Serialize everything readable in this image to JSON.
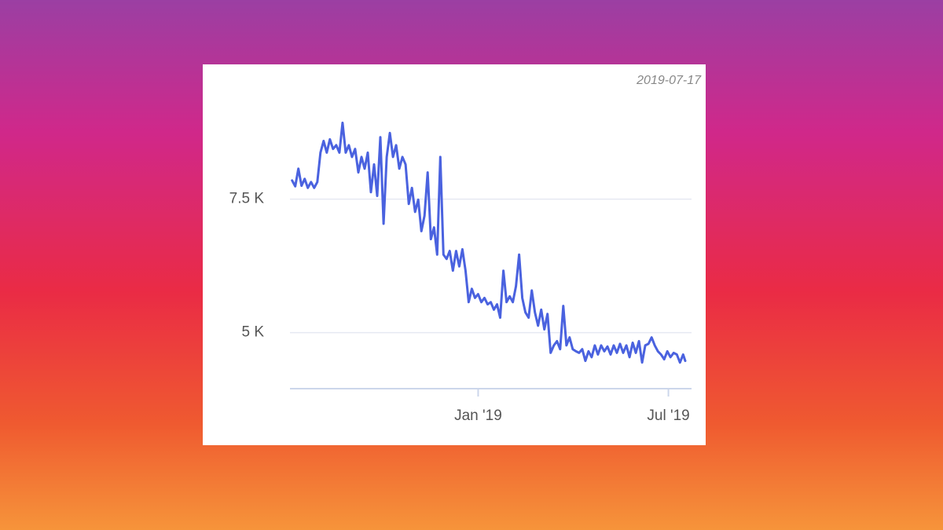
{
  "chart_data": {
    "type": "line",
    "date_label": "2019-07-17",
    "x": [
      "2018-07-08",
      "2018-07-11",
      "2018-07-14",
      "2018-07-17",
      "2018-07-20",
      "2018-07-23",
      "2018-07-26",
      "2018-07-29",
      "2018-08-01",
      "2018-08-04",
      "2018-08-07",
      "2018-08-10",
      "2018-08-13",
      "2018-08-16",
      "2018-08-19",
      "2018-08-22",
      "2018-08-25",
      "2018-08-28",
      "2018-08-31",
      "2018-09-03",
      "2018-09-06",
      "2018-09-09",
      "2018-09-12",
      "2018-09-15",
      "2018-09-18",
      "2018-09-21",
      "2018-09-24",
      "2018-09-27",
      "2018-09-30",
      "2018-10-03",
      "2018-10-06",
      "2018-10-09",
      "2018-10-12",
      "2018-10-15",
      "2018-10-18",
      "2018-10-21",
      "2018-10-24",
      "2018-10-27",
      "2018-10-30",
      "2018-11-02",
      "2018-11-05",
      "2018-11-08",
      "2018-11-11",
      "2018-11-14",
      "2018-11-17",
      "2018-11-20",
      "2018-11-23",
      "2018-11-26",
      "2018-11-29",
      "2018-12-02",
      "2018-12-05",
      "2018-12-08",
      "2018-12-11",
      "2018-12-14",
      "2018-12-17",
      "2018-12-20",
      "2018-12-23",
      "2018-12-26",
      "2018-12-29",
      "2019-01-01",
      "2019-01-04",
      "2019-01-07",
      "2019-01-10",
      "2019-01-13",
      "2019-01-16",
      "2019-01-19",
      "2019-01-22",
      "2019-01-25",
      "2019-01-28",
      "2019-01-31",
      "2019-02-03",
      "2019-02-06",
      "2019-02-09",
      "2019-02-12",
      "2019-02-15",
      "2019-02-18",
      "2019-02-21",
      "2019-02-24",
      "2019-02-27",
      "2019-03-02",
      "2019-03-05",
      "2019-03-08",
      "2019-03-11",
      "2019-03-14",
      "2019-03-17",
      "2019-03-20",
      "2019-03-23",
      "2019-03-26",
      "2019-03-29",
      "2019-04-01",
      "2019-04-04",
      "2019-04-07",
      "2019-04-10",
      "2019-04-13",
      "2019-04-16",
      "2019-04-19",
      "2019-04-22",
      "2019-04-25",
      "2019-04-28",
      "2019-05-01",
      "2019-05-04",
      "2019-05-07",
      "2019-05-10",
      "2019-05-13",
      "2019-05-16",
      "2019-05-19",
      "2019-05-22",
      "2019-05-25",
      "2019-05-28",
      "2019-05-31",
      "2019-06-03",
      "2019-06-06",
      "2019-06-09",
      "2019-06-12",
      "2019-06-15",
      "2019-06-18",
      "2019-06-21",
      "2019-06-24",
      "2019-06-27",
      "2019-06-30",
      "2019-07-03",
      "2019-07-06",
      "2019-07-09",
      "2019-07-12",
      "2019-07-15",
      "2019-07-17"
    ],
    "values": [
      7850,
      7740,
      8070,
      7750,
      7880,
      7710,
      7820,
      7710,
      7820,
      8370,
      8590,
      8370,
      8620,
      8440,
      8510,
      8370,
      8930,
      8370,
      8510,
      8290,
      8440,
      8000,
      8290,
      8070,
      8370,
      7630,
      8150,
      7560,
      8660,
      7040,
      8290,
      8740,
      8290,
      8510,
      8070,
      8290,
      8150,
      7410,
      7710,
      7260,
      7490,
      6900,
      7190,
      8000,
      6750,
      6970,
      6460,
      8290,
      6460,
      6380,
      6530,
      6160,
      6530,
      6240,
      6560,
      6160,
      5570,
      5820,
      5650,
      5720,
      5570,
      5650,
      5530,
      5570,
      5430,
      5530,
      5280,
      6160,
      5570,
      5680,
      5570,
      5870,
      6460,
      5650,
      5380,
      5280,
      5790,
      5380,
      5130,
      5430,
      5060,
      5350,
      4620,
      4760,
      4840,
      4690,
      5500,
      4760,
      4910,
      4690,
      4650,
      4620,
      4690,
      4470,
      4650,
      4540,
      4760,
      4590,
      4760,
      4650,
      4740,
      4590,
      4760,
      4620,
      4790,
      4620,
      4760,
      4540,
      4810,
      4620,
      4840,
      4440,
      4760,
      4790,
      4910,
      4760,
      4650,
      4590,
      4500,
      4650,
      4540,
      4620,
      4590,
      4440,
      4590,
      4470
    ],
    "color": "#4a62df",
    "xlim": [
      "2018-07-06",
      "2019-07-23"
    ],
    "xticks": [
      {
        "value": "2019-01-01",
        "label": "Jan '19"
      },
      {
        "value": "2019-07-01",
        "label": "Jul '19"
      }
    ],
    "ylim": [
      3950,
      9200
    ],
    "yticks": [
      {
        "value": 5000,
        "label": "5 K"
      },
      {
        "value": 7500,
        "label": "7.5 K"
      }
    ],
    "grid": true
  }
}
